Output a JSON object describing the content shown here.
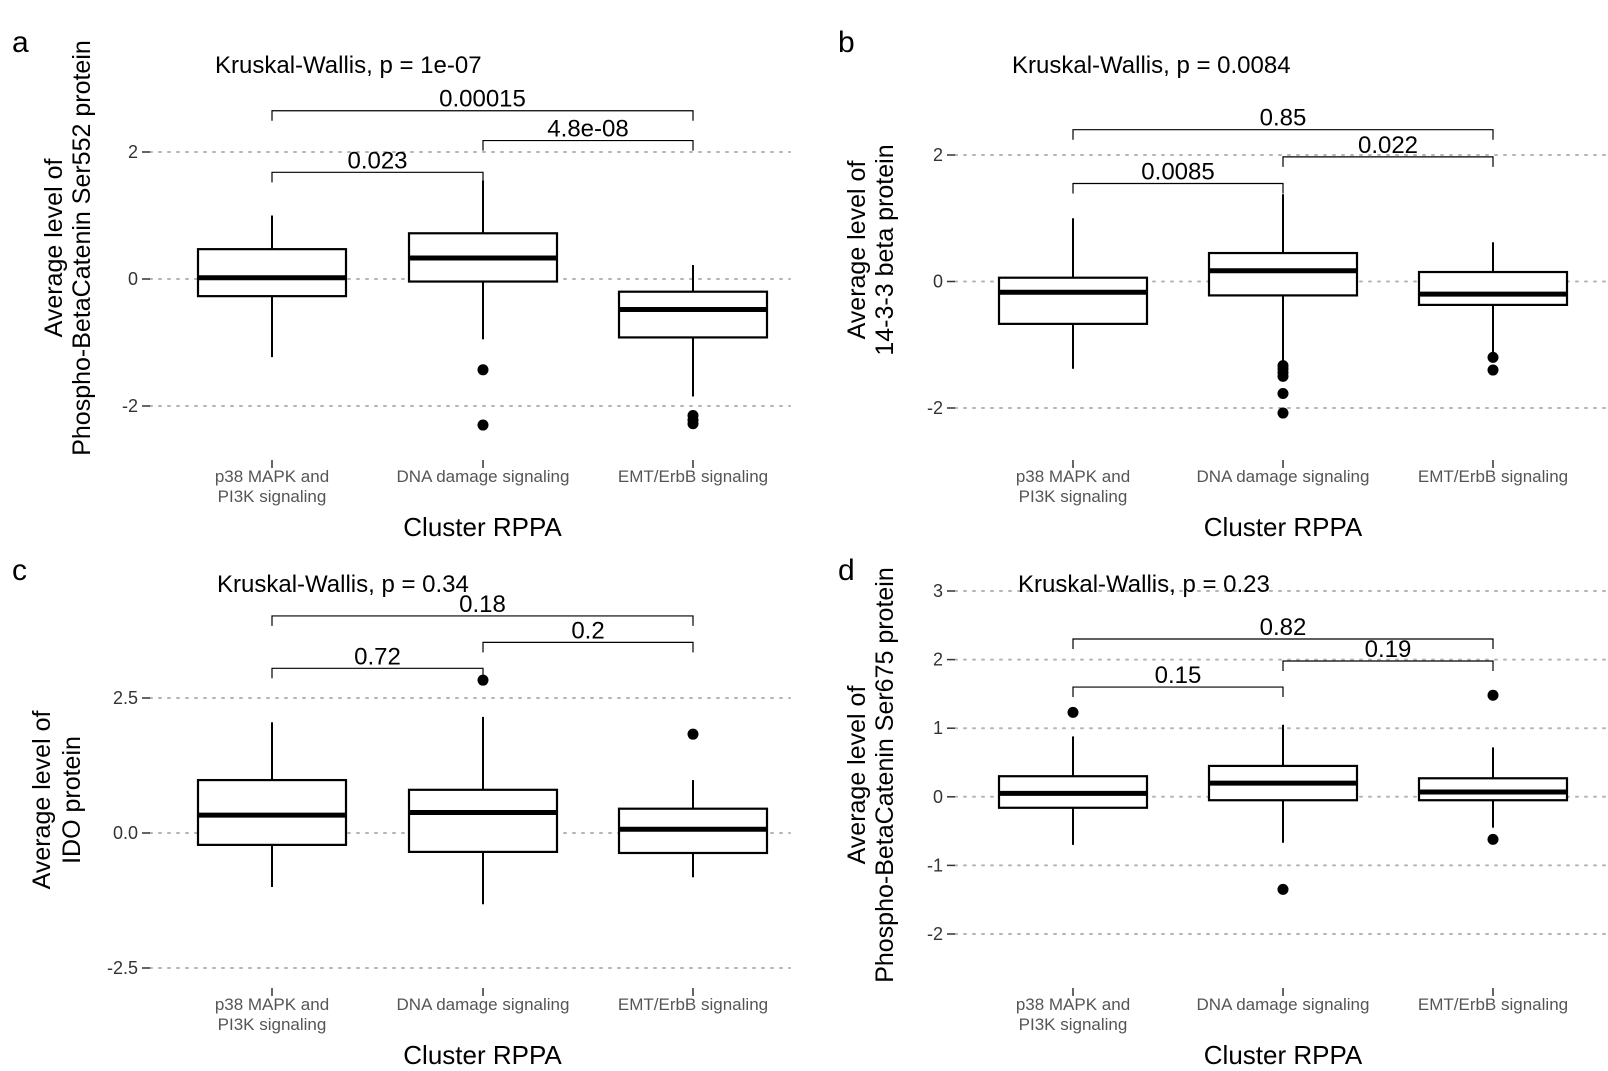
{
  "chart_data": [
    {
      "type": "box",
      "panel": "a",
      "title": "Kruskal-Wallis, p = 1e-07",
      "xlabel": "Cluster RPPA",
      "ylabel": [
        "Average level of",
        "Phospho-BetaCatenin Ser552 protein"
      ],
      "categories": [
        [
          "p38 MAPK and",
          "PI3K signaling"
        ],
        [
          "DNA damage signaling"
        ],
        [
          "EMT/ErbB signaling"
        ]
      ],
      "yticks": [
        -2,
        0,
        2
      ],
      "ytick_labels": [
        "-2",
        "0",
        "2"
      ],
      "ylim": [
        -2.7,
        3.6
      ],
      "grid": "horizontal dotted",
      "boxes": [
        {
          "whisker_low": -1.23,
          "q1": -0.27,
          "median": 0.02,
          "q3": 0.47,
          "whisker_high": 1.0,
          "outliers": []
        },
        {
          "whisker_low": -0.95,
          "q1": -0.04,
          "median": 0.33,
          "q3": 0.72,
          "whisker_high": 1.55,
          "outliers": [
            -1.43,
            -2.3
          ]
        },
        {
          "whisker_low": -1.85,
          "q1": -0.92,
          "median": -0.48,
          "q3": -0.2,
          "whisker_high": 0.22,
          "outliers": [
            -2.15,
            -2.22,
            -2.28
          ]
        }
      ],
      "comparisons": [
        {
          "from": 0,
          "to": 1,
          "label": "0.023",
          "y": 1.68
        },
        {
          "from": 1,
          "to": 2,
          "label": "4.8e-08",
          "y": 2.18
        },
        {
          "from": 0,
          "to": 2,
          "label": "0.00015",
          "y": 2.65
        }
      ]
    },
    {
      "type": "box",
      "panel": "b",
      "title": "Kruskal-Wallis, p = 0.0084",
      "xlabel": "Cluster RPPA",
      "ylabel": [
        "Average level of",
        "14-3-3 beta protein"
      ],
      "categories": [
        [
          "p38 MAPK and",
          "PI3K signaling"
        ],
        [
          "DNA damage signaling"
        ],
        [
          "EMT/ErbB signaling"
        ]
      ],
      "yticks": [
        -2,
        0,
        2
      ],
      "ytick_labels": [
        "-2",
        "0",
        "2"
      ],
      "ylim": [
        -2.7,
        3.6
      ],
      "grid": "horizontal dotted",
      "boxes": [
        {
          "whisker_low": -1.38,
          "q1": -0.67,
          "median": -0.17,
          "q3": 0.06,
          "whisker_high": 1.0,
          "outliers": []
        },
        {
          "whisker_low": -1.26,
          "q1": -0.22,
          "median": 0.17,
          "q3": 0.45,
          "whisker_high": 1.38,
          "outliers": [
            -1.33,
            -1.38,
            -1.44,
            -1.5,
            -1.77,
            -2.08
          ]
        },
        {
          "whisker_low": -1.15,
          "q1": -0.37,
          "median": -0.2,
          "q3": 0.15,
          "whisker_high": 0.62,
          "outliers": [
            -1.2,
            -1.4
          ]
        }
      ],
      "comparisons": [
        {
          "from": 0,
          "to": 1,
          "label": "0.0085",
          "y": 1.55
        },
        {
          "from": 1,
          "to": 2,
          "label": "0.022",
          "y": 1.97
        },
        {
          "from": 0,
          "to": 2,
          "label": "0.85",
          "y": 2.4
        }
      ]
    },
    {
      "type": "box",
      "panel": "c",
      "title": "Kruskal-Wallis, p = 0.34",
      "xlabel": "Cluster RPPA",
      "ylabel": [
        "Average level of",
        "IDO protein"
      ],
      "categories": [
        [
          "p38 MAPK and",
          "PI3K signaling"
        ],
        [
          "DNA damage signaling"
        ],
        [
          "EMT/ErbB signaling"
        ]
      ],
      "yticks": [
        -2.5,
        0.0,
        2.5
      ],
      "ytick_labels": [
        "-2.5",
        "0.0",
        "2.5"
      ],
      "ylim": [
        -3.0,
        5.0
      ],
      "grid": "horizontal dotted",
      "boxes": [
        {
          "whisker_low": -1.0,
          "q1": -0.22,
          "median": 0.33,
          "q3": 0.98,
          "whisker_high": 2.05,
          "outliers": []
        },
        {
          "whisker_low": -1.32,
          "q1": -0.35,
          "median": 0.38,
          "q3": 0.8,
          "whisker_high": 2.15,
          "outliers": [
            2.83
          ]
        },
        {
          "whisker_low": -0.82,
          "q1": -0.37,
          "median": 0.07,
          "q3": 0.45,
          "whisker_high": 0.98,
          "outliers": [
            1.83
          ]
        }
      ],
      "comparisons": [
        {
          "from": 0,
          "to": 1,
          "label": "0.72",
          "y": 3.05
        },
        {
          "from": 1,
          "to": 2,
          "label": "0.2",
          "y": 3.53
        },
        {
          "from": 0,
          "to": 2,
          "label": "0.18",
          "y": 4.02
        }
      ]
    },
    {
      "type": "box",
      "panel": "d",
      "title": "Kruskal-Wallis, p = 0.23",
      "xlabel": "Cluster RPPA",
      "ylabel": [
        "Average level of",
        "Phospho-BetaCatenin Ser675 protein"
      ],
      "categories": [
        [
          "p38 MAPK and",
          "PI3K signaling"
        ],
        [
          "DNA damage signaling"
        ],
        [
          "EMT/ErbB signaling"
        ]
      ],
      "yticks": [
        -2,
        -1,
        0,
        1,
        2,
        3
      ],
      "ytick_labels": [
        "-2",
        "-1",
        "0",
        "1",
        "2",
        "3"
      ],
      "ylim": [
        -2.7,
        3.3
      ],
      "grid": "horizontal dotted",
      "boxes": [
        {
          "whisker_low": -0.7,
          "q1": -0.16,
          "median": 0.05,
          "q3": 0.3,
          "whisker_high": 0.88,
          "outliers": [
            1.23
          ]
        },
        {
          "whisker_low": -0.67,
          "q1": -0.05,
          "median": 0.2,
          "q3": 0.45,
          "whisker_high": 1.05,
          "outliers": [
            -1.35
          ]
        },
        {
          "whisker_low": -0.45,
          "q1": -0.05,
          "median": 0.07,
          "q3": 0.27,
          "whisker_high": 0.72,
          "outliers": [
            1.48,
            -0.62
          ]
        }
      ],
      "comparisons": [
        {
          "from": 0,
          "to": 1,
          "label": "0.15",
          "y": 1.6
        },
        {
          "from": 1,
          "to": 2,
          "label": "0.19",
          "y": 1.98
        },
        {
          "from": 0,
          "to": 2,
          "label": "0.82",
          "y": 2.3
        }
      ]
    }
  ]
}
